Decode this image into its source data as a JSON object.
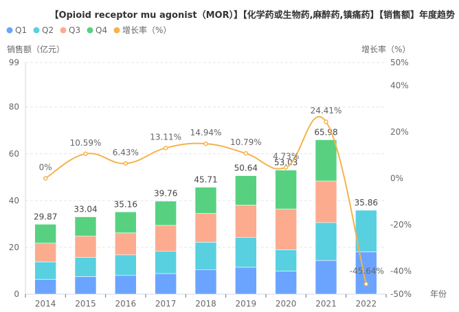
{
  "chart_data": {
    "type": "bar",
    "title": "【Opioid receptor mu agonist（MOR）】【化学药或生物药,麻醉药,镇痛药】【销售额】年度趋势",
    "xlabel": "年份",
    "ylabel": "销售额（亿元）",
    "y2label": "增长率（%）",
    "categories": [
      "2014",
      "2015",
      "2016",
      "2017",
      "2018",
      "2019",
      "2020",
      "2021",
      "2022"
    ],
    "ylim": [
      0,
      99
    ],
    "yticks": [
      0,
      20,
      40,
      60,
      80,
      99
    ],
    "y2lim": [
      -50,
      50
    ],
    "y2ticks": [
      "-50%",
      "-40%",
      "-20%",
      "0%",
      "20%",
      "40%",
      "50%"
    ],
    "y2tick_values": [
      -50,
      -40,
      -20,
      0,
      20,
      40,
      50
    ],
    "grid": true,
    "legend_position": "top-left",
    "stacked": true,
    "series": [
      {
        "name": "Q1",
        "type": "bar",
        "color": "#6ba4ff",
        "values": [
          6.3,
          7.5,
          8.0,
          8.8,
          10.5,
          11.5,
          9.8,
          14.4,
          18.1
        ]
      },
      {
        "name": "Q2",
        "type": "bar",
        "color": "#58d0e0",
        "values": [
          7.5,
          8.2,
          8.8,
          9.5,
          11.7,
          12.8,
          9.2,
          16.2,
          17.76
        ]
      },
      {
        "name": "Q3",
        "type": "bar",
        "color": "#fcab8f",
        "values": [
          8.0,
          9.1,
          9.4,
          11.1,
          12.3,
          13.8,
          17.4,
          17.8,
          null
        ]
      },
      {
        "name": "Q4",
        "type": "bar",
        "color": "#57d180",
        "values": [
          8.07,
          8.24,
          8.96,
          10.36,
          11.21,
          12.54,
          16.63,
          17.58,
          null
        ]
      },
      {
        "name": "增长率（%）",
        "type": "line",
        "axis": "right",
        "color": "#f6b24c",
        "values": [
          0,
          10.59,
          6.43,
          13.11,
          14.94,
          10.79,
          4.73,
          24.41,
          -45.64
        ],
        "labels": [
          "0%",
          "10.59%",
          "6.43%",
          "13.11%",
          "14.94%",
          "10.79%",
          "4.73%",
          "24.41%",
          "-45.64%"
        ]
      }
    ],
    "totals": [
      29.87,
      33.04,
      35.16,
      39.76,
      45.71,
      50.64,
      53.03,
      65.98,
      35.86
    ],
    "total_labels": [
      "29.87",
      "33.04",
      "35.16",
      "39.76",
      "45.71",
      "50.64",
      "53.03",
      "65.98",
      "35.86"
    ],
    "legend": [
      "Q1",
      "Q2",
      "Q3",
      "Q4",
      "增长率（%）"
    ]
  }
}
